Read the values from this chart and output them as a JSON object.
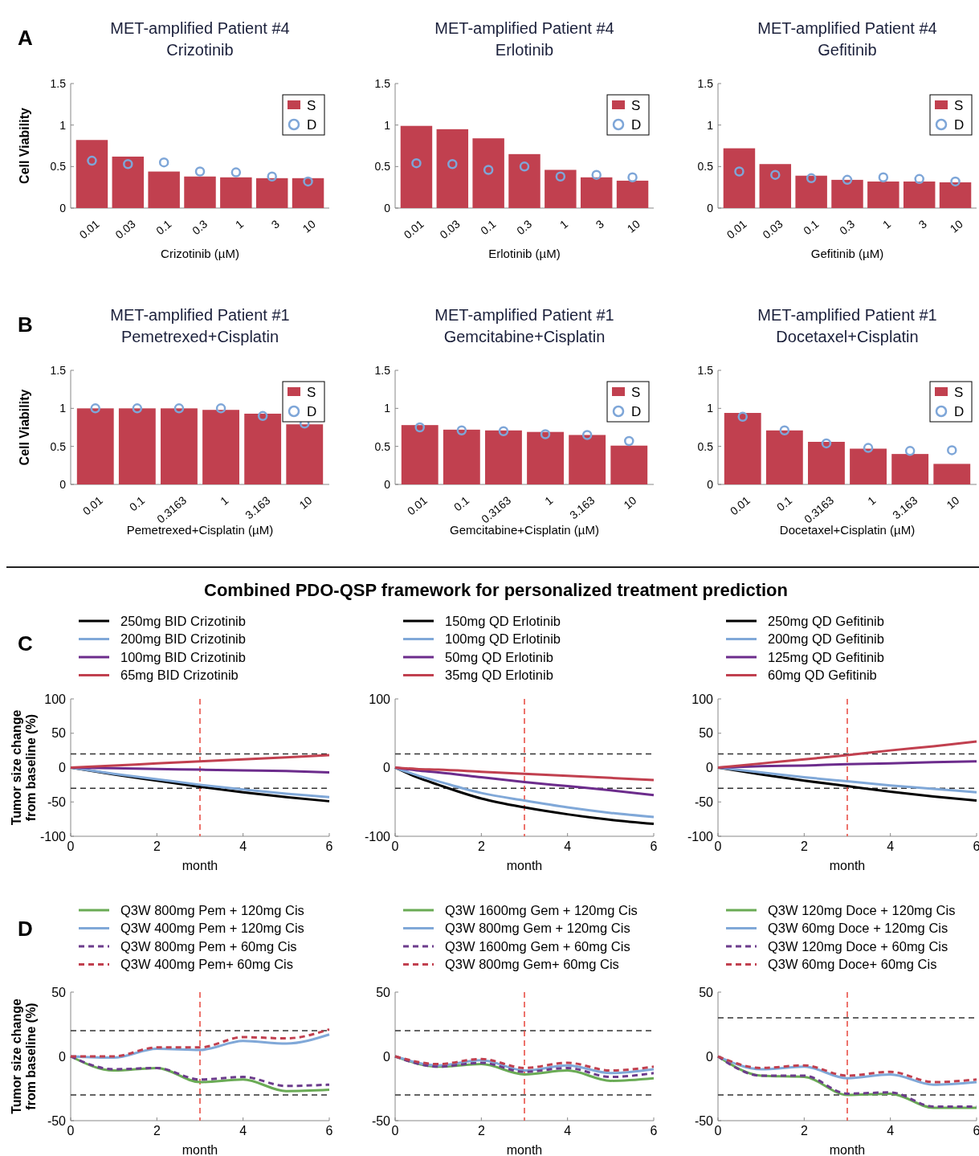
{
  "chart_data": [
    {
      "type": "bar",
      "title": "MET-amplified Patient #4",
      "subtitle": "Crizotinib",
      "xlabel": "Crizotinib (µM)",
      "ylabel": "Cell Viability",
      "annotations": [
        "A"
      ],
      "categories": [
        "0.01",
        "0.03",
        "0.1",
        "0.3",
        "1",
        "3",
        "10"
      ],
      "ylim": [
        0,
        1.5
      ],
      "yticks": [
        0,
        0.5,
        1,
        1.5
      ],
      "legend": "top right",
      "series": [
        {
          "name": "S",
          "type": "bar",
          "color": "#c1404f",
          "values": [
            0.82,
            0.62,
            0.44,
            0.38,
            0.37,
            0.36,
            0.36
          ]
        },
        {
          "name": "D",
          "type": "scatter",
          "color": "#7ea6d8",
          "values": [
            0.57,
            0.53,
            0.55,
            0.44,
            0.43,
            0.38,
            0.32
          ]
        }
      ]
    },
    {
      "type": "bar",
      "title": "MET-amplified Patient #4",
      "subtitle": "Erlotinib",
      "xlabel": "Erlotinib (µM)",
      "categories": [
        "0.01",
        "0.03",
        "0.1",
        "0.3",
        "1",
        "3",
        "10"
      ],
      "ylim": [
        0,
        1.5
      ],
      "yticks": [
        0,
        0.5,
        1,
        1.5
      ],
      "legend": "top right",
      "series": [
        {
          "name": "S",
          "type": "bar",
          "color": "#c1404f",
          "values": [
            0.99,
            0.95,
            0.84,
            0.65,
            0.46,
            0.37,
            0.33
          ]
        },
        {
          "name": "D",
          "type": "scatter",
          "color": "#7ea6d8",
          "values": [
            0.54,
            0.53,
            0.46,
            0.5,
            0.38,
            0.4,
            0.37
          ]
        }
      ]
    },
    {
      "type": "bar",
      "title": "MET-amplified Patient #4",
      "subtitle": "Gefitinib",
      "xlabel": "Gefitinib (µM)",
      "categories": [
        "0.01",
        "0.03",
        "0.1",
        "0.3",
        "1",
        "3",
        "10"
      ],
      "ylim": [
        0,
        1.5
      ],
      "yticks": [
        0,
        0.5,
        1,
        1.5
      ],
      "legend": "top right",
      "series": [
        {
          "name": "S",
          "type": "bar",
          "color": "#c1404f",
          "values": [
            0.72,
            0.53,
            0.39,
            0.34,
            0.32,
            0.32,
            0.31
          ]
        },
        {
          "name": "D",
          "type": "scatter",
          "color": "#7ea6d8",
          "values": [
            0.44,
            0.4,
            0.36,
            0.34,
            0.37,
            0.35,
            0.32
          ]
        }
      ]
    },
    {
      "type": "bar",
      "title": "MET-amplified Patient #1",
      "subtitle": "Pemetrexed+Cisplatin",
      "xlabel": "Pemetrexed+Cisplatin (µM)",
      "ylabel": "Cell Viability",
      "annotations": [
        "B"
      ],
      "categories": [
        "0.01",
        "0.1",
        "0.3163",
        "1",
        "3.163",
        "10"
      ],
      "ylim": [
        0,
        1.5
      ],
      "yticks": [
        0,
        0.5,
        1,
        1.5
      ],
      "legend": "top right",
      "series": [
        {
          "name": "S",
          "type": "bar",
          "color": "#c1404f",
          "values": [
            1.0,
            1.0,
            1.0,
            0.98,
            0.93,
            0.79
          ]
        },
        {
          "name": "D",
          "type": "scatter",
          "color": "#7ea6d8",
          "values": [
            1.0,
            1.0,
            1.0,
            1.0,
            0.9,
            0.8
          ]
        }
      ]
    },
    {
      "type": "bar",
      "title": "MET-amplified Patient #1",
      "subtitle": "Gemcitabine+Cisplatin",
      "xlabel": "Gemcitabine+Cisplatin (µM)",
      "categories": [
        "0.01",
        "0.1",
        "0.3163",
        "1",
        "3.163",
        "10"
      ],
      "ylim": [
        0,
        1.5
      ],
      "yticks": [
        0,
        0.5,
        1,
        1.5
      ],
      "legend": "top right",
      "series": [
        {
          "name": "S",
          "type": "bar",
          "color": "#c1404f",
          "values": [
            0.78,
            0.72,
            0.71,
            0.69,
            0.65,
            0.51
          ]
        },
        {
          "name": "D",
          "type": "scatter",
          "color": "#7ea6d8",
          "values": [
            0.75,
            0.71,
            0.7,
            0.66,
            0.65,
            0.57
          ]
        }
      ]
    },
    {
      "type": "bar",
      "title": "MET-amplified Patient #1",
      "subtitle": "Docetaxel+Cisplatin",
      "xlabel": "Docetaxel+Cisplatin (µM)",
      "categories": [
        "0.01",
        "0.1",
        "0.3163",
        "1",
        "3.163",
        "10"
      ],
      "ylim": [
        0,
        1.5
      ],
      "yticks": [
        0,
        0.5,
        1,
        1.5
      ],
      "legend": "top right",
      "series": [
        {
          "name": "S",
          "type": "bar",
          "color": "#c1404f",
          "values": [
            0.94,
            0.71,
            0.56,
            0.47,
            0.4,
            0.27
          ]
        },
        {
          "name": "D",
          "type": "scatter",
          "color": "#7ea6d8",
          "values": [
            0.89,
            0.71,
            0.54,
            0.48,
            0.44,
            0.45
          ]
        }
      ]
    },
    {
      "type": "line",
      "title": "Combined PDO-QSP framework for personalized treatment prediction",
      "xlabel": "month",
      "ylabel": "Tumor size change\nfrom baseline (%)",
      "annotations": [
        "C"
      ],
      "x": [
        0,
        1,
        2,
        3,
        4,
        5,
        6
      ],
      "xlim": [
        0,
        6
      ],
      "xticks": [
        0,
        2,
        4,
        6
      ],
      "ylim": [
        -100,
        100
      ],
      "yticks": [
        -100,
        -50,
        0,
        50,
        100
      ],
      "legend": "top",
      "series": [
        {
          "name": "250mg BID Crizotinib",
          "color": "#000000",
          "values": [
            0,
            -10,
            -19,
            -28,
            -36,
            -43,
            -49
          ]
        },
        {
          "name": "200mg BID Crizotinib",
          "color": "#80a8d8",
          "values": [
            0,
            -9,
            -17,
            -25,
            -32,
            -38,
            -43
          ]
        },
        {
          "name": "100mg BID Crizotinib",
          "color": "#6c2c8c",
          "values": [
            0,
            -1,
            -2,
            -3,
            -4,
            -5,
            -7
          ]
        },
        {
          "name": "65mg BID Crizotinib",
          "color": "#c1404f",
          "values": [
            0,
            3,
            6,
            9,
            12,
            15,
            18
          ]
        }
      ],
      "ref_lines": [
        {
          "axis": "y",
          "value": 20,
          "color": "#333333",
          "line_style": "dashed"
        },
        {
          "axis": "y",
          "value": -30,
          "color": "#333333",
          "line_style": "dashed"
        },
        {
          "axis": "x",
          "value": 3,
          "color": "#e8453c",
          "line_style": "dashed"
        }
      ]
    },
    {
      "type": "line",
      "xlabel": "month",
      "x": [
        0,
        0.5,
        1,
        2,
        3,
        4,
        5,
        6
      ],
      "xlim": [
        0,
        6
      ],
      "xticks": [
        0,
        2,
        4,
        6
      ],
      "ylim": [
        -100,
        100
      ],
      "yticks": [
        -100,
        0,
        100
      ],
      "legend": "top",
      "series": [
        {
          "name": "150mg QD Erlotinib",
          "color": "#000000",
          "values": [
            0,
            -14,
            -25,
            -45,
            -58,
            -68,
            -76,
            -82
          ]
        },
        {
          "name": "100mg QD Erlotinib",
          "color": "#80a8d8",
          "values": [
            0,
            -11,
            -20,
            -37,
            -48,
            -58,
            -66,
            -72
          ]
        },
        {
          "name": "50mg QD Erlotinib",
          "color": "#6c2c8c",
          "values": [
            0,
            -4,
            -7,
            -14,
            -21,
            -27,
            -33,
            -40
          ]
        },
        {
          "name": "35mg QD Erlotinib",
          "color": "#c1404f",
          "values": [
            0,
            -2,
            -3,
            -6,
            -9,
            -12,
            -15,
            -18
          ]
        }
      ],
      "ref_lines": [
        {
          "axis": "y",
          "value": 20,
          "color": "#333333",
          "line_style": "dashed"
        },
        {
          "axis": "y",
          "value": -30,
          "color": "#333333",
          "line_style": "dashed"
        },
        {
          "axis": "x",
          "value": 3,
          "color": "#e8453c",
          "line_style": "dashed"
        }
      ]
    },
    {
      "type": "line",
      "xlabel": "month",
      "x": [
        0,
        1,
        2,
        3,
        4,
        5,
        6
      ],
      "xlim": [
        0,
        6
      ],
      "xticks": [
        0,
        2,
        4,
        6
      ],
      "ylim": [
        -100,
        100
      ],
      "yticks": [
        -100,
        -50,
        0,
        50,
        100
      ],
      "legend": "top",
      "series": [
        {
          "name": "250mg QD Gefitinib",
          "color": "#000000",
          "values": [
            0,
            -10,
            -19,
            -27,
            -35,
            -42,
            -48
          ]
        },
        {
          "name": "200mg QD Gefitinib",
          "color": "#80a8d8",
          "values": [
            0,
            -7,
            -14,
            -20,
            -26,
            -31,
            -36
          ]
        },
        {
          "name": "125mg QD Gefitinib",
          "color": "#6c2c8c",
          "values": [
            0,
            2,
            3,
            5,
            6,
            8,
            9
          ]
        },
        {
          "name": "60mg QD Gefitinib",
          "color": "#c1404f",
          "values": [
            0,
            6,
            12,
            18,
            25,
            31,
            38
          ]
        }
      ],
      "ref_lines": [
        {
          "axis": "y",
          "value": 20,
          "color": "#333333",
          "line_style": "dashed"
        },
        {
          "axis": "y",
          "value": -30,
          "color": "#333333",
          "line_style": "dashed"
        },
        {
          "axis": "x",
          "value": 3,
          "color": "#e8453c",
          "line_style": "dashed"
        }
      ]
    },
    {
      "type": "line",
      "xlabel": "month",
      "ylabel": "Tumor size change\nfrom baseline (%)",
      "annotations": [
        "D"
      ],
      "x": [
        0,
        1,
        2,
        3,
        4,
        5,
        6
      ],
      "xlim": [
        0,
        6
      ],
      "xticks": [
        0,
        2,
        4,
        6
      ],
      "ylim": [
        -50,
        50
      ],
      "yticks": [
        -50,
        0,
        50
      ],
      "legend": "top",
      "series": [
        {
          "name": "Q3W 800mg Pem + 120mg Cis",
          "color": "#6aab55",
          "line_style": "solid",
          "values": [
            0,
            -11,
            -9,
            -20,
            -18,
            -27,
            -26
          ]
        },
        {
          "name": "Q3W 400mg Pem + 120mg Cis",
          "color": "#80a8d8",
          "line_style": "solid",
          "values": [
            0,
            -1,
            6,
            5,
            12,
            10,
            17
          ]
        },
        {
          "name": "Q3W 800mg Pem + 60mg Cis",
          "color": "#6c3c8c",
          "line_style": "dashed",
          "values": [
            0,
            -10,
            -9,
            -18,
            -16,
            -23,
            -22
          ]
        },
        {
          "name": "Q3W 400mg Pem+ 60mg Cis",
          "color": "#c1404f",
          "line_style": "dashed",
          "values": [
            0,
            0,
            7,
            7,
            15,
            14,
            21
          ]
        }
      ],
      "ref_lines": [
        {
          "axis": "y",
          "value": 20,
          "color": "#333333",
          "line_style": "dashed"
        },
        {
          "axis": "y",
          "value": -30,
          "color": "#333333",
          "line_style": "dashed"
        },
        {
          "axis": "x",
          "value": 3,
          "color": "#e8453c",
          "line_style": "dashed"
        }
      ]
    },
    {
      "type": "line",
      "xlabel": "month",
      "x": [
        0,
        1,
        2,
        3,
        4,
        5,
        6
      ],
      "xlim": [
        0,
        6
      ],
      "xticks": [
        0,
        2,
        4,
        6
      ],
      "ylim": [
        -50,
        50
      ],
      "yticks": [
        -50,
        0,
        50
      ],
      "legend": "top",
      "series": [
        {
          "name": "Q3W 1600mg Gem + 120mg Cis",
          "color": "#6aab55",
          "line_style": "solid",
          "values": [
            0,
            -8,
            -6,
            -14,
            -11,
            -19,
            -17
          ]
        },
        {
          "name": "Q3W 800mg Gem + 120mg Cis",
          "color": "#80a8d8",
          "line_style": "solid",
          "values": [
            0,
            -7,
            -3,
            -11,
            -7,
            -13,
            -10
          ]
        },
        {
          "name": "Q3W 1600mg Gem + 60mg Cis",
          "color": "#6c3c8c",
          "line_style": "dashed",
          "values": [
            0,
            -8,
            -5,
            -12,
            -9,
            -16,
            -13
          ]
        },
        {
          "name": "Q3W 800mg Gem+ 60mg Cis",
          "color": "#c1404f",
          "line_style": "dashed",
          "values": [
            0,
            -6,
            -2,
            -9,
            -5,
            -11,
            -8
          ]
        }
      ],
      "ref_lines": [
        {
          "axis": "y",
          "value": 20,
          "color": "#333333",
          "line_style": "dashed"
        },
        {
          "axis": "y",
          "value": -30,
          "color": "#333333",
          "line_style": "dashed"
        },
        {
          "axis": "x",
          "value": 3,
          "color": "#e8453c",
          "line_style": "dashed"
        }
      ]
    },
    {
      "type": "line",
      "xlabel": "month",
      "x": [
        0,
        1,
        2,
        3,
        4,
        5,
        6
      ],
      "xlim": [
        0,
        6
      ],
      "xticks": [
        0,
        2,
        4,
        6
      ],
      "ylim": [
        -50,
        50
      ],
      "yticks": [
        -50,
        0,
        50
      ],
      "legend": "top",
      "series": [
        {
          "name": "Q3W 120mg Doce + 120mg Cis",
          "color": "#6aab55",
          "line_style": "solid",
          "values": [
            0,
            -15,
            -16,
            -30,
            -29,
            -40,
            -40
          ]
        },
        {
          "name": "Q3W 60mg Doce + 120mg Cis",
          "color": "#80a8d8",
          "line_style": "solid",
          "values": [
            0,
            -10,
            -8,
            -17,
            -14,
            -22,
            -20
          ]
        },
        {
          "name": "Q3W 120mg Doce + 60mg Cis",
          "color": "#6c3c8c",
          "line_style": "dashed",
          "values": [
            0,
            -15,
            -15,
            -29,
            -28,
            -39,
            -39
          ]
        },
        {
          "name": "Q3W 60mg Doce+ 60mg Cis",
          "color": "#c1404f",
          "line_style": "dashed",
          "values": [
            0,
            -9,
            -7,
            -15,
            -12,
            -20,
            -18
          ]
        }
      ],
      "ref_lines": [
        {
          "axis": "y",
          "value": 30,
          "color": "#333333",
          "line_style": "dashed"
        },
        {
          "axis": "y",
          "value": -30,
          "color": "#333333",
          "line_style": "dashed"
        },
        {
          "axis": "x",
          "value": 3,
          "color": "#e8453c",
          "line_style": "dashed"
        }
      ]
    }
  ]
}
